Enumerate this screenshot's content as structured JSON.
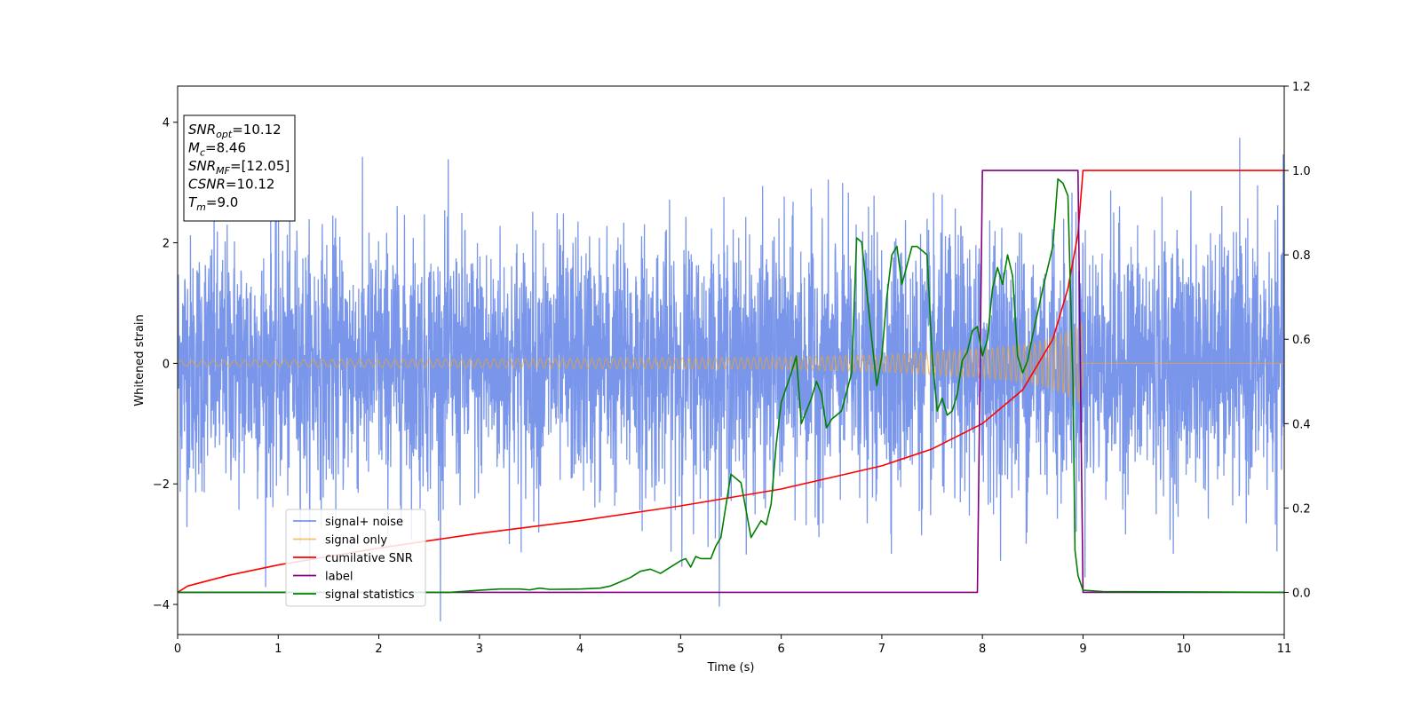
{
  "chart_data": {
    "type": "line",
    "xlabel": "Time (s)",
    "ylabel": "Whitened strain",
    "xlim": [
      0,
      11
    ],
    "ylim_left": [
      -4.5,
      4.6
    ],
    "ylim_right": [
      -0.1,
      1.2
    ],
    "x_ticks": [
      0,
      1,
      2,
      3,
      4,
      5,
      6,
      7,
      8,
      9,
      10,
      11
    ],
    "y_ticks_left": [
      -4,
      -2,
      0,
      2,
      4
    ],
    "y_ticks_right": [
      0.0,
      0.2,
      0.4,
      0.6,
      0.8,
      1.0,
      1.2
    ],
    "grid": false,
    "legend_position": "lower-left",
    "info_box": {
      "position": "top-left",
      "lines": [
        {
          "symbol": "SNR",
          "subscript": "opt",
          "value": "=10.12"
        },
        {
          "symbol": "M",
          "subscript": "c",
          "value": "=8.46"
        },
        {
          "symbol": "SNR",
          "subscript": "MF",
          "value": "=[12.05]"
        },
        {
          "symbol": "CSNR",
          "subscript": "",
          "value": "=10.12"
        },
        {
          "symbol": "T",
          "subscript": "m",
          "value": "=9.0"
        }
      ]
    },
    "series": [
      {
        "name": "signal+ noise",
        "axis": "left",
        "color": "#4169e1",
        "kind": "noise",
        "noise_std": 1.05,
        "x_range": [
          0,
          11
        ]
      },
      {
        "name": "signal only",
        "axis": "left",
        "color": "#f5a623",
        "kind": "chirp",
        "x_range": [
          0,
          9
        ],
        "envelope": [
          [
            0,
            0.05
          ],
          [
            6,
            0.1
          ],
          [
            7,
            0.14
          ],
          [
            8,
            0.24
          ],
          [
            8.5,
            0.33
          ],
          [
            8.8,
            0.5
          ],
          [
            9.0,
            0.7
          ]
        ],
        "after_merger_value": 0
      },
      {
        "name": "cumilative SNR",
        "axis": "right",
        "color": "#ff0000",
        "points": [
          [
            0,
            0.0
          ],
          [
            0.1,
            0.015
          ],
          [
            0.5,
            0.04
          ],
          [
            1,
            0.065
          ],
          [
            2,
            0.105
          ],
          [
            3,
            0.14
          ],
          [
            4,
            0.17
          ],
          [
            5,
            0.205
          ],
          [
            6,
            0.245
          ],
          [
            7,
            0.3
          ],
          [
            7.5,
            0.34
          ],
          [
            8,
            0.4
          ],
          [
            8.4,
            0.48
          ],
          [
            8.7,
            0.6
          ],
          [
            8.85,
            0.72
          ],
          [
            8.95,
            0.85
          ],
          [
            9.0,
            1.0
          ],
          [
            11,
            1.0
          ]
        ]
      },
      {
        "name": "label",
        "axis": "right",
        "color": "#800080",
        "points": [
          [
            0,
            0.0
          ],
          [
            7.95,
            0.0
          ],
          [
            8.0,
            1.0
          ],
          [
            8.95,
            1.0
          ],
          [
            9.0,
            0.0
          ],
          [
            11,
            0.0
          ]
        ]
      },
      {
        "name": "signal statistics",
        "axis": "right",
        "color": "#008000",
        "points": [
          [
            0,
            0.0
          ],
          [
            2.5,
            0.0
          ],
          [
            2.7,
            0.0
          ],
          [
            3.0,
            0.005
          ],
          [
            3.2,
            0.008
          ],
          [
            3.4,
            0.008
          ],
          [
            3.5,
            0.006
          ],
          [
            3.6,
            0.01
          ],
          [
            3.7,
            0.007
          ],
          [
            4.0,
            0.008
          ],
          [
            4.2,
            0.01
          ],
          [
            4.3,
            0.015
          ],
          [
            4.4,
            0.025
          ],
          [
            4.5,
            0.035
          ],
          [
            4.6,
            0.05
          ],
          [
            4.7,
            0.055
          ],
          [
            4.8,
            0.045
          ],
          [
            4.9,
            0.06
          ],
          [
            5.0,
            0.075
          ],
          [
            5.05,
            0.08
          ],
          [
            5.1,
            0.06
          ],
          [
            5.15,
            0.085
          ],
          [
            5.2,
            0.08
          ],
          [
            5.3,
            0.08
          ],
          [
            5.35,
            0.11
          ],
          [
            5.4,
            0.13
          ],
          [
            5.5,
            0.28
          ],
          [
            5.6,
            0.26
          ],
          [
            5.7,
            0.13
          ],
          [
            5.8,
            0.17
          ],
          [
            5.85,
            0.16
          ],
          [
            5.9,
            0.21
          ],
          [
            5.95,
            0.35
          ],
          [
            6.0,
            0.45
          ],
          [
            6.1,
            0.52
          ],
          [
            6.15,
            0.56
          ],
          [
            6.2,
            0.4
          ],
          [
            6.3,
            0.46
          ],
          [
            6.35,
            0.5
          ],
          [
            6.4,
            0.47
          ],
          [
            6.45,
            0.39
          ],
          [
            6.5,
            0.41
          ],
          [
            6.6,
            0.43
          ],
          [
            6.7,
            0.52
          ],
          [
            6.75,
            0.84
          ],
          [
            6.8,
            0.83
          ],
          [
            6.9,
            0.6
          ],
          [
            6.95,
            0.49
          ],
          [
            7.0,
            0.56
          ],
          [
            7.05,
            0.7
          ],
          [
            7.1,
            0.8
          ],
          [
            7.15,
            0.82
          ],
          [
            7.2,
            0.73
          ],
          [
            7.3,
            0.82
          ],
          [
            7.35,
            0.82
          ],
          [
            7.45,
            0.8
          ],
          [
            7.5,
            0.56
          ],
          [
            7.55,
            0.43
          ],
          [
            7.6,
            0.46
          ],
          [
            7.65,
            0.42
          ],
          [
            7.7,
            0.43
          ],
          [
            7.75,
            0.47
          ],
          [
            7.8,
            0.55
          ],
          [
            7.85,
            0.57
          ],
          [
            7.9,
            0.62
          ],
          [
            7.95,
            0.63
          ],
          [
            8.0,
            0.56
          ],
          [
            8.05,
            0.6
          ],
          [
            8.1,
            0.72
          ],
          [
            8.15,
            0.77
          ],
          [
            8.2,
            0.73
          ],
          [
            8.25,
            0.8
          ],
          [
            8.3,
            0.75
          ],
          [
            8.35,
            0.56
          ],
          [
            8.4,
            0.52
          ],
          [
            8.45,
            0.55
          ],
          [
            8.5,
            0.61
          ],
          [
            8.6,
            0.72
          ],
          [
            8.7,
            0.82
          ],
          [
            8.75,
            0.98
          ],
          [
            8.8,
            0.97
          ],
          [
            8.85,
            0.94
          ],
          [
            8.9,
            0.5
          ],
          [
            8.92,
            0.1
          ],
          [
            8.95,
            0.04
          ],
          [
            9.0,
            0.005
          ],
          [
            9.2,
            0.002
          ],
          [
            11,
            0.0
          ]
        ]
      }
    ]
  }
}
